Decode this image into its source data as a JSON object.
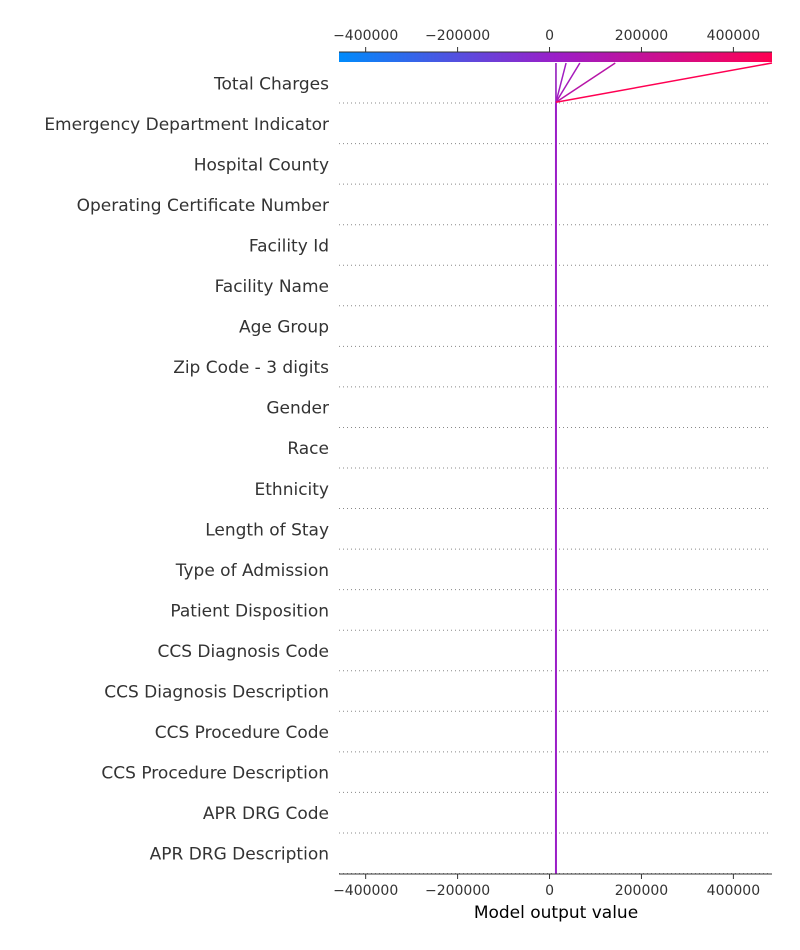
{
  "chart_data": {
    "type": "decision_plot",
    "xlabel": "Model output value",
    "xlim": [
      -458000,
      484000
    ],
    "x_ticks": [
      -400000,
      -200000,
      0,
      200000,
      400000
    ],
    "x_tick_labels": [
      "−400000",
      "−200000",
      "0",
      "200000",
      "400000"
    ],
    "base_value": 14000,
    "colormap": {
      "low": "#008bfb",
      "mid": "#9b1ec8",
      "high": "#ff0052"
    },
    "features": [
      "Total Charges",
      "Emergency Department Indicator",
      "Hospital County",
      "Operating Certificate Number",
      "Facility Id",
      "Facility Name",
      "Age Group",
      "Zip Code - 3 digits",
      "Gender",
      "Race",
      "Ethnicity",
      "Length of Stay",
      "Type of Admission",
      "Patient Disposition",
      "CCS Diagnosis Code",
      "CCS Diagnosis Description",
      "CCS Procedure Code",
      "CCS Procedure Description",
      "APR DRG Code",
      "APR DRG Description"
    ],
    "final_outputs": [
      14000,
      36000,
      66000,
      143000,
      484000
    ],
    "grid": "dotted-horizontal"
  }
}
